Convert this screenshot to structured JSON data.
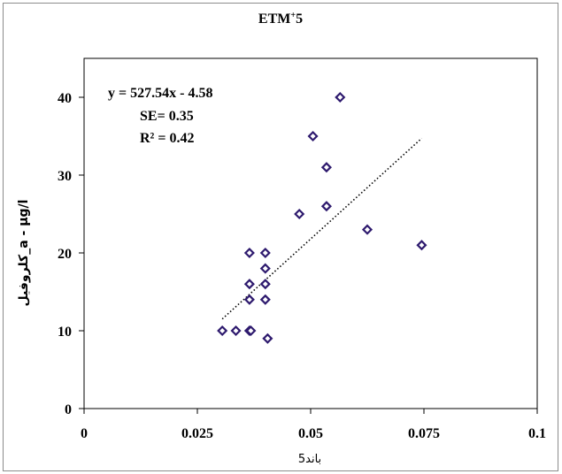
{
  "chart_data": {
    "type": "scatter",
    "title": "ETM",
    "title_superscript": "+",
    "title_suffix": "5",
    "xlabel": "باند5",
    "ylabel": "کلروفیل_a - µg/l",
    "xlim": [
      0,
      0.1
    ],
    "ylim": [
      0,
      45
    ],
    "x_ticks": [
      0,
      0.025,
      0.05,
      0.075,
      0.1
    ],
    "x_tick_labels": [
      "0",
      "0.025",
      "0.05",
      "0.075",
      "0.1"
    ],
    "y_ticks": [
      0,
      10,
      20,
      30,
      40
    ],
    "y_tick_labels": [
      "0",
      "10",
      "20",
      "30",
      "40"
    ],
    "grid": false,
    "marker": "diamond",
    "marker_color": "#2e1a6e",
    "trendline_color": "#000000",
    "annotations": {
      "equation": "y = 527.54x - 4.58",
      "se": "SE= 0.35",
      "r2": "R² = 0.42"
    },
    "trendline": {
      "slope": 527.54,
      "intercept": -4.58,
      "x_range": [
        0.0305,
        0.0745
      ]
    },
    "points": [
      {
        "x": 0.0305,
        "y": 10
      },
      {
        "x": 0.0335,
        "y": 10
      },
      {
        "x": 0.0365,
        "y": 10
      },
      {
        "x": 0.0368,
        "y": 10
      },
      {
        "x": 0.0365,
        "y": 14
      },
      {
        "x": 0.0365,
        "y": 16
      },
      {
        "x": 0.0365,
        "y": 20
      },
      {
        "x": 0.04,
        "y": 20
      },
      {
        "x": 0.04,
        "y": 18
      },
      {
        "x": 0.04,
        "y": 16
      },
      {
        "x": 0.04,
        "y": 14
      },
      {
        "x": 0.0405,
        "y": 9
      },
      {
        "x": 0.0475,
        "y": 25
      },
      {
        "x": 0.0505,
        "y": 35
      },
      {
        "x": 0.0535,
        "y": 31
      },
      {
        "x": 0.0535,
        "y": 26
      },
      {
        "x": 0.0565,
        "y": 40
      },
      {
        "x": 0.0625,
        "y": 23
      },
      {
        "x": 0.0745,
        "y": 21
      }
    ]
  }
}
